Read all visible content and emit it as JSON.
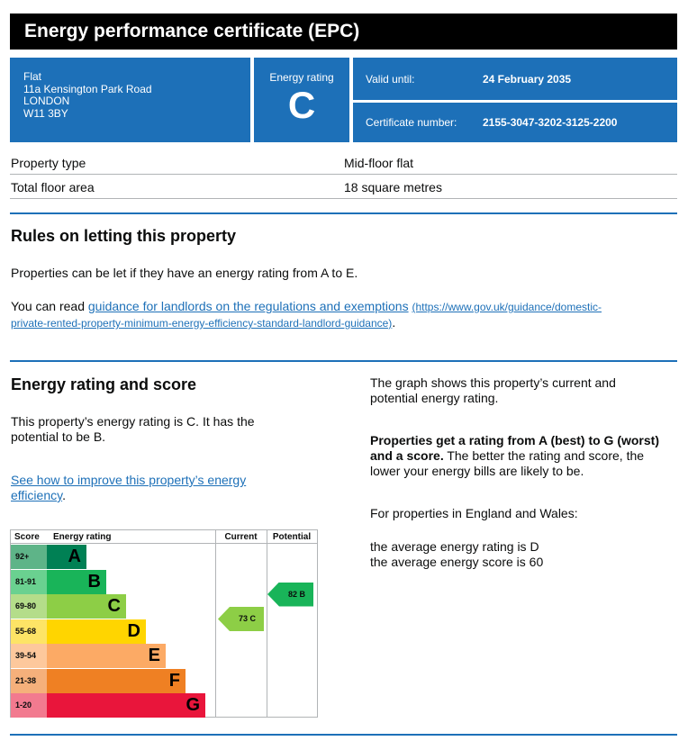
{
  "title": "Energy performance certificate (EPC)",
  "address": {
    "type": "Flat",
    "line1": "11a Kensington Park Road",
    "city": "LONDON",
    "postcode": "W11 3BY"
  },
  "rating": {
    "label": "Energy rating",
    "letter": "C"
  },
  "valid": {
    "label": "Valid until:",
    "value": "24 February 2035"
  },
  "certificate": {
    "label": "Certificate number:",
    "value": "2155-3047-3202-3125-2200"
  },
  "property": [
    {
      "key": "Property type",
      "value": "Mid-floor flat"
    },
    {
      "key": "Total floor area",
      "value": "18 square metres"
    }
  ],
  "letting": {
    "heading": "Rules on letting this property",
    "para1": "Properties can be let if they have an energy rating from A to E.",
    "para2_prefix": "You can read ",
    "link_text": "guidance for landlords on the regulations and exemptions",
    "link_url_line1": "(https://www.gov.uk/guidance/domestic-",
    "link_url_line2": "private-rented-property-minimum-energy-efficiency-standard-landlord-guidance)",
    "para2_suffix": "."
  },
  "score_section": {
    "heading": "Energy rating and score",
    "line1": "This property’s energy rating is C. It has the",
    "line2": "potential to be B.",
    "improve_line1": "See how to improve this property’s energy",
    "improve_line2": "efficiency",
    "improve_suffix": ".",
    "right_p1_line1": "The graph shows this property’s current and",
    "right_p1_line2": "potential energy rating.",
    "right_p2_bold_line1": "Properties get a rating from A (best) to G (worst)",
    "right_p2_bold_line2": "and a score.",
    "right_p2_rest_line2": " The better the rating and score, the",
    "right_p2_line3": "lower your energy bills are likely to be.",
    "right_p3": "For properties in England and Wales:",
    "right_p4_line1": "the average energy rating is D",
    "right_p4_line2": "the average energy score is 60"
  },
  "chart_data": {
    "type": "bar",
    "headers": {
      "score": "Score",
      "rating": "Energy rating",
      "current": "Current",
      "potential": "Potential"
    },
    "bands": [
      {
        "range": "92+",
        "letter": "A",
        "color": "#008054",
        "score_bg": "#5eb488"
      },
      {
        "range": "81-91",
        "letter": "B",
        "color": "#19b459",
        "score_bg": "#6ad190"
      },
      {
        "range": "69-80",
        "letter": "C",
        "color": "#8dce46",
        "score_bg": "#b4dd8a"
      },
      {
        "range": "55-68",
        "letter": "D",
        "color": "#ffd500",
        "score_bg": "#fde466"
      },
      {
        "range": "39-54",
        "letter": "E",
        "color": "#fcaa65",
        "score_bg": "#fdc89c"
      },
      {
        "range": "21-38",
        "letter": "F",
        "color": "#ef8023",
        "score_bg": "#f5b07b"
      },
      {
        "range": "1-20",
        "letter": "G",
        "color": "#e9153b",
        "score_bg": "#f27a8f"
      }
    ],
    "current": {
      "score": 73,
      "letter": "C",
      "label": "73  C",
      "color": "#8dce46"
    },
    "potential": {
      "score": 82,
      "letter": "B",
      "label": "82  B",
      "color": "#19b459"
    }
  }
}
